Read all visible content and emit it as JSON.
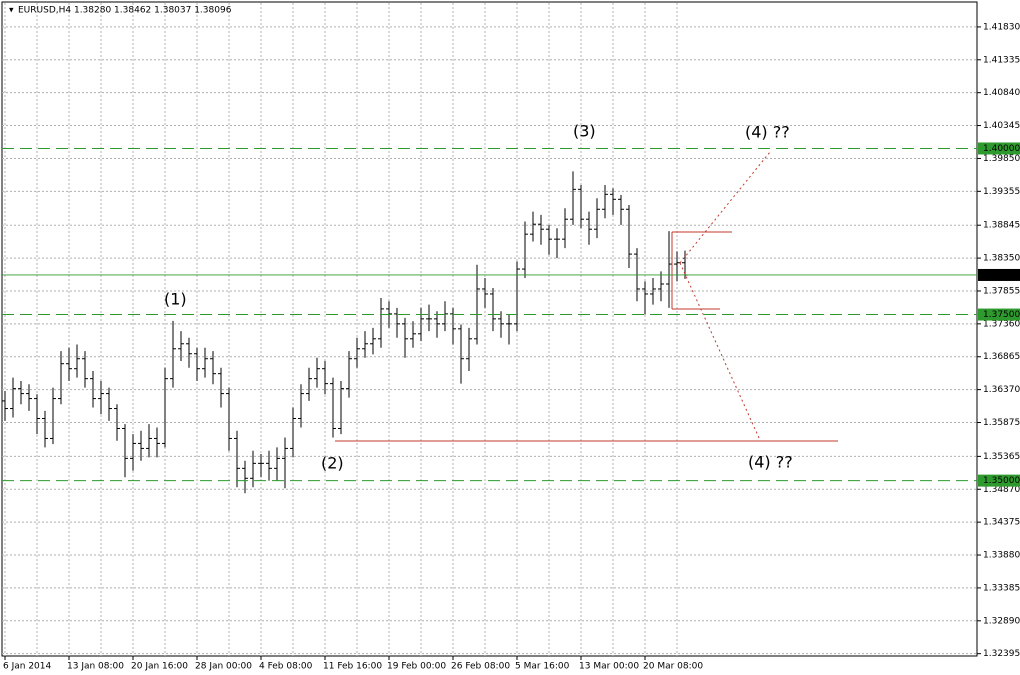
{
  "chart_data": {
    "type": "ohlc",
    "header": "EURUSD,H4  1.38280 1.38462 1.38037 1.38096",
    "categories": [
      "6 Jan 2014",
      null,
      null,
      null,
      null,
      null,
      null,
      null,
      "13 Jan 08:00",
      null,
      null,
      null,
      null,
      null,
      null,
      null,
      "20 Jan 16:00",
      null,
      null,
      null,
      null,
      null,
      null,
      null,
      "28 Jan 00:00",
      null,
      null,
      null,
      null,
      null,
      null,
      null,
      "4 Feb 08:00",
      null,
      null,
      null,
      null,
      null,
      null,
      null,
      "11 Feb 16:00",
      null,
      null,
      null,
      null,
      null,
      null,
      null,
      "19 Feb 00:00",
      null,
      null,
      null,
      null,
      null,
      null,
      null,
      "26 Feb 08:00",
      null,
      null,
      null,
      null,
      null,
      null,
      null,
      "5 Mar 16:00",
      null,
      null,
      null,
      null,
      null,
      null,
      null,
      "13 Mar 00:00",
      null,
      null,
      null,
      null,
      null,
      null,
      null,
      "20 Mar 08:00",
      null,
      null,
      null,
      null,
      null
    ],
    "open": [
      1.362,
      1.36085,
      1.36385,
      1.3631,
      1.36235,
      1.35935,
      1.35635,
      1.36235,
      1.3676,
      1.36685,
      1.36835,
      1.36535,
      1.36235,
      1.3631,
      1.36085,
      1.35785,
      1.35335,
      1.3556,
      1.35485,
      1.35635,
      1.3556,
      1.36535,
      1.36985,
      1.3706,
      1.3691,
      1.36685,
      1.36835,
      1.3661,
      1.3631,
      1.35635,
      1.35185,
      1.35035,
      1.3526,
      1.3526,
      1.35185,
      1.35335,
      1.35485,
      1.35935,
      1.3631,
      1.36535,
      1.36685,
      1.3646,
      1.35785,
      1.36385,
      1.36835,
      1.36985,
      1.3706,
      1.37135,
      1.37585,
      1.3751,
      1.3736,
      1.37135,
      1.3721,
      1.37435,
      1.37435,
      1.3736,
      1.3751,
      1.37285,
      1.36835,
      1.37135,
      1.37885,
      1.3781,
      1.37435,
      1.3736,
      1.3736,
      1.38185,
      1.3871,
      1.3886,
      1.38785,
      1.38635,
      1.38635,
      1.38935,
      1.39385,
      1.38935,
      1.38785,
      1.39085,
      1.3931,
      1.39235,
      1.39085,
      1.3841,
      1.37885,
      1.3781,
      1.37885,
      1.3796,
      1.3826,
      1.3828
    ],
    "high": [
      1.3635,
      1.3655,
      1.365,
      1.3645,
      1.363,
      1.3605,
      1.364,
      1.3695,
      1.37,
      1.3705,
      1.3695,
      1.3665,
      1.365,
      1.364,
      1.3615,
      1.3585,
      1.357,
      1.3575,
      1.3585,
      1.358,
      1.367,
      1.37405,
      1.3725,
      1.3715,
      1.37,
      1.37,
      1.3695,
      1.367,
      1.364,
      1.3575,
      1.353,
      1.3545,
      1.354,
      1.3545,
      1.355,
      1.3565,
      1.361,
      1.3645,
      1.367,
      1.3685,
      1.368,
      1.3655,
      1.365,
      1.3695,
      1.3715,
      1.3725,
      1.373,
      1.3775,
      1.377,
      1.376,
      1.3745,
      1.374,
      1.376,
      1.3765,
      1.3755,
      1.377,
      1.376,
      1.3735,
      1.373,
      1.3825,
      1.3805,
      1.379,
      1.3755,
      1.375,
      1.383,
      1.389,
      1.3905,
      1.39,
      1.3885,
      1.388,
      1.391,
      1.39655,
      1.3945,
      1.3905,
      1.3925,
      1.3945,
      1.394,
      1.393,
      1.3915,
      1.385,
      1.38,
      1.3805,
      1.3815,
      1.38755,
      1.3845,
      1.38462
    ],
    "low": [
      1.359,
      1.3595,
      1.3615,
      1.3605,
      1.357,
      1.355,
      1.3555,
      1.3615,
      1.365,
      1.3655,
      1.364,
      1.361,
      1.36,
      1.359,
      1.356,
      1.3505,
      1.3515,
      1.353,
      1.3535,
      1.3535,
      1.355,
      1.364,
      1.368,
      1.367,
      1.365,
      1.3655,
      1.3645,
      1.361,
      1.3545,
      1.349,
      1.3481,
      1.349,
      1.3505,
      1.35,
      1.35,
      1.34885,
      1.3535,
      1.358,
      1.362,
      1.364,
      1.363,
      1.3565,
      1.357,
      1.3625,
      1.367,
      1.3685,
      1.369,
      1.37,
      1.373,
      1.3715,
      1.3685,
      1.37,
      1.371,
      1.3725,
      1.3715,
      1.3725,
      1.3705,
      1.3646,
      1.3665,
      1.3705,
      1.376,
      1.3725,
      1.3715,
      1.3705,
      1.3725,
      1.3805,
      1.386,
      1.3855,
      1.384,
      1.3835,
      1.385,
      1.3885,
      1.388,
      1.3855,
      1.3865,
      1.3895,
      1.39,
      1.3885,
      1.382,
      1.377,
      1.375,
      1.3765,
      1.377,
      1.376,
      1.38,
      1.38037
    ],
    "close": [
      1.36085,
      1.36385,
      1.3631,
      1.36235,
      1.35935,
      1.35635,
      1.36235,
      1.3676,
      1.36685,
      1.36835,
      1.36535,
      1.36235,
      1.3631,
      1.36085,
      1.35785,
      1.35335,
      1.3556,
      1.35485,
      1.35635,
      1.3556,
      1.36535,
      1.36985,
      1.3706,
      1.3691,
      1.36685,
      1.36835,
      1.3661,
      1.3631,
      1.35635,
      1.35185,
      1.35035,
      1.3526,
      1.3526,
      1.35185,
      1.35335,
      1.35485,
      1.35935,
      1.3631,
      1.36535,
      1.36685,
      1.3646,
      1.35785,
      1.36385,
      1.36835,
      1.36985,
      1.3706,
      1.37135,
      1.37585,
      1.3751,
      1.3736,
      1.37135,
      1.3721,
      1.37435,
      1.37435,
      1.3736,
      1.3751,
      1.37285,
      1.36835,
      1.37135,
      1.37885,
      1.3781,
      1.37435,
      1.3736,
      1.3736,
      1.38185,
      1.3871,
      1.3886,
      1.38785,
      1.38635,
      1.38635,
      1.38935,
      1.39385,
      1.38935,
      1.38785,
      1.39085,
      1.3931,
      1.39235,
      1.39085,
      1.3841,
      1.37885,
      1.3781,
      1.37885,
      1.3796,
      1.3826,
      1.3828,
      1.38096
    ],
    "color": "#000000",
    "ylim": [
      1.3236,
      1.4219
    ],
    "yticks": [
      {
        "value": 1.4183,
        "label": "1.41830"
      },
      1.41335,
      {
        "value": 1.4084,
        "label": "1.40840"
      },
      1.40345,
      {
        "value": 1.3985,
        "label": "1.39850"
      },
      1.39355,
      1.38845,
      {
        "value": 1.3835,
        "label": "1.38350"
      },
      1.37855,
      {
        "value": 1.3736,
        "label": "1.37360"
      },
      1.36865,
      {
        "value": 1.3637,
        "label": "1.36370"
      },
      1.35875,
      1.35365,
      {
        "value": 1.3487,
        "label": "1.34870"
      },
      1.34375,
      {
        "value": 1.3388,
        "label": "1.33880"
      },
      1.33385,
      {
        "value": 1.3289,
        "label": "1.32890"
      },
      1.32395
    ],
    "grid": true,
    "levels": [
      {
        "value": 1.4,
        "label": "1.40000"
      },
      {
        "value": 1.375,
        "label": "1.37500"
      },
      {
        "value": 1.35,
        "label": "1.35000"
      }
    ],
    "level_color": "#2e9a2e",
    "current_price": 1.38096,
    "annotations": [
      {
        "text": "(1)",
        "color": "#1f8f1f"
      },
      {
        "text": "(2)",
        "color": "#1f8f1f"
      },
      {
        "text": "(3)",
        "color": "#1f8f1f"
      },
      {
        "text": "(4) ??",
        "color": "#1a1ad0"
      },
      {
        "text": "(4) ??",
        "color": "#1a1ad0"
      }
    ]
  }
}
